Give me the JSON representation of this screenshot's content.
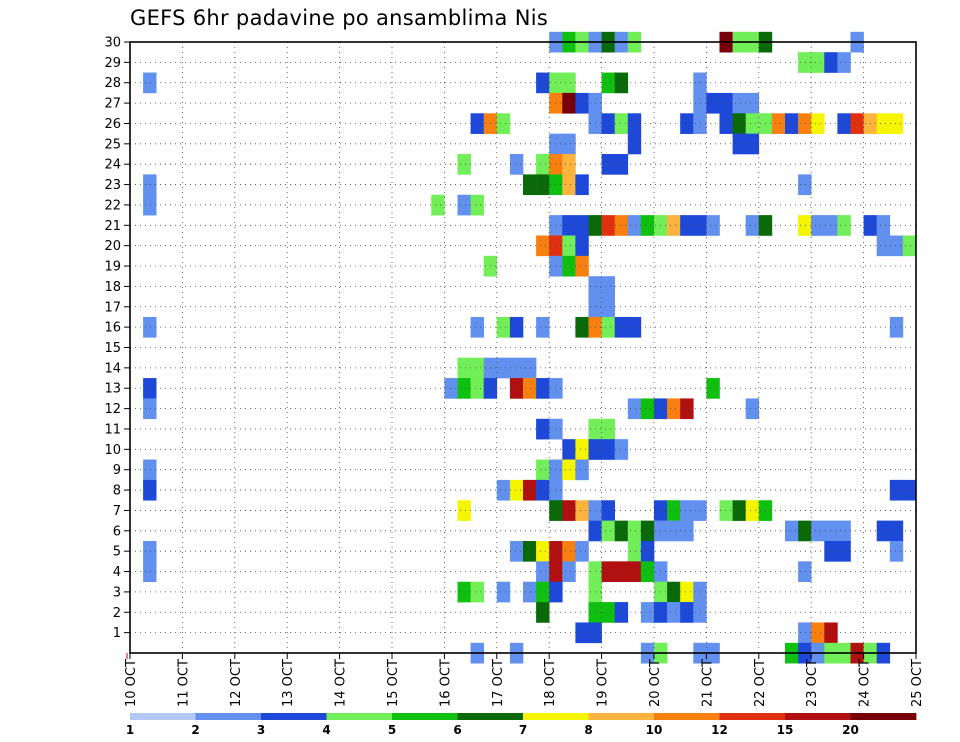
{
  "title": "GEFS 6hr padavine po ansamblima Nis",
  "chart_data": {
    "type": "heatmap",
    "title": "GEFS 6hr padavine po ansamblima Nis",
    "xlabel": "",
    "ylabel": "",
    "x_start_day": 10,
    "x_end_day": 25,
    "x_steps_per_day": 4,
    "x_ticks": [
      "10 OCT",
      "11 OCT",
      "12 OCT",
      "13 OCT",
      "14 OCT",
      "15 OCT",
      "16 OCT",
      "17 OCT",
      "18 OCT",
      "19 OCT",
      "20 OCT",
      "21 OCT",
      "22 OCT",
      "23 OCT",
      "24 OCT",
      "25 OCT"
    ],
    "y_ticks": [
      "1",
      "2",
      "3",
      "4",
      "5",
      "6",
      "7",
      "8",
      "9",
      "10",
      "11",
      "12",
      "13",
      "14",
      "15",
      "16",
      "17",
      "18",
      "19",
      "20",
      "21",
      "22",
      "23",
      "24",
      "25",
      "26",
      "27",
      "28",
      "29",
      "30"
    ],
    "grid": true,
    "legend_position": "bottom",
    "color_scale": [
      {
        "label": "1",
        "color": "#b4c8f5"
      },
      {
        "label": "2",
        "color": "#6290ee"
      },
      {
        "label": "3",
        "color": "#1e48d8"
      },
      {
        "label": "4",
        "color": "#72ee58"
      },
      {
        "label": "5",
        "color": "#10c010"
      },
      {
        "label": "6",
        "color": "#0a6a0a"
      },
      {
        "label": "7",
        "color": "#f5f500"
      },
      {
        "label": "8",
        "color": "#fcb43c"
      },
      {
        "label": "10",
        "color": "#f88010"
      },
      {
        "label": "12",
        "color": "#e03010"
      },
      {
        "label": "15",
        "color": "#b01010"
      },
      {
        "label": "20",
        "color": "#780008"
      }
    ],
    "ensembles": [
      {
        "y": 30,
        "cells": [
          [
            18.0,
            1
          ],
          [
            18.25,
            4
          ],
          [
            18.5,
            3
          ],
          [
            18.75,
            1
          ],
          [
            19.0,
            5
          ],
          [
            19.25,
            1
          ],
          [
            19.5,
            3
          ],
          [
            21.25,
            11
          ],
          [
            21.5,
            3
          ],
          [
            21.75,
            3
          ],
          [
            22.0,
            5
          ],
          [
            23.75,
            1
          ]
        ]
      },
      {
        "y": 29,
        "cells": [
          [
            22.75,
            3
          ],
          [
            23.0,
            3
          ],
          [
            23.25,
            2
          ],
          [
            23.5,
            1
          ]
        ]
      },
      {
        "y": 28,
        "cells": [
          [
            10.25,
            1
          ],
          [
            17.75,
            2
          ],
          [
            18.0,
            3
          ],
          [
            18.25,
            3
          ],
          [
            19.0,
            4
          ],
          [
            19.25,
            5
          ],
          [
            20.75,
            1
          ]
        ]
      },
      {
        "y": 27,
        "cells": [
          [
            18.0,
            8
          ],
          [
            18.25,
            11
          ],
          [
            18.5,
            2
          ],
          [
            18.75,
            1
          ],
          [
            20.75,
            1
          ],
          [
            21.0,
            2
          ],
          [
            21.25,
            2
          ],
          [
            21.5,
            1
          ],
          [
            21.75,
            1
          ]
        ]
      },
      {
        "y": 26,
        "cells": [
          [
            16.5,
            2
          ],
          [
            16.75,
            8
          ],
          [
            17.0,
            3
          ],
          [
            18.75,
            1
          ],
          [
            19.0,
            2
          ],
          [
            19.25,
            3
          ],
          [
            19.5,
            2
          ],
          [
            20.5,
            2
          ],
          [
            20.75,
            1
          ],
          [
            21.25,
            2
          ],
          [
            21.5,
            5
          ],
          [
            21.75,
            3
          ],
          [
            22.0,
            3
          ],
          [
            22.25,
            8
          ],
          [
            22.5,
            2
          ],
          [
            22.75,
            8
          ],
          [
            23.0,
            6
          ],
          [
            23.5,
            2
          ],
          [
            23.75,
            9
          ],
          [
            24.0,
            7
          ],
          [
            24.25,
            6
          ],
          [
            24.5,
            6
          ]
        ]
      },
      {
        "y": 25,
        "cells": [
          [
            18.0,
            1
          ],
          [
            18.25,
            1
          ],
          [
            19.5,
            2
          ],
          [
            21.5,
            2
          ],
          [
            21.75,
            2
          ]
        ]
      },
      {
        "y": 24,
        "cells": [
          [
            16.25,
            3
          ],
          [
            17.25,
            1
          ],
          [
            17.75,
            3
          ],
          [
            18.0,
            8
          ],
          [
            18.25,
            7
          ],
          [
            19.0,
            2
          ],
          [
            19.25,
            2
          ]
        ]
      },
      {
        "y": 23,
        "cells": [
          [
            10.25,
            1
          ],
          [
            17.5,
            5
          ],
          [
            17.75,
            5
          ],
          [
            18.0,
            4
          ],
          [
            18.25,
            7
          ],
          [
            18.5,
            2
          ],
          [
            22.75,
            1
          ]
        ]
      },
      {
        "y": 22,
        "cells": [
          [
            10.25,
            1
          ],
          [
            15.75,
            3
          ],
          [
            16.25,
            1
          ],
          [
            16.5,
            3
          ]
        ]
      },
      {
        "y": 21,
        "cells": [
          [
            18.0,
            1
          ],
          [
            18.25,
            2
          ],
          [
            18.5,
            2
          ],
          [
            18.75,
            5
          ],
          [
            19.0,
            9
          ],
          [
            19.25,
            8
          ],
          [
            19.5,
            1
          ],
          [
            19.75,
            4
          ],
          [
            20.0,
            3
          ],
          [
            20.25,
            7
          ],
          [
            20.5,
            2
          ],
          [
            20.75,
            2
          ],
          [
            21.0,
            1
          ],
          [
            21.75,
            1
          ],
          [
            22.0,
            5
          ],
          [
            22.75,
            6
          ],
          [
            23.0,
            1
          ],
          [
            23.25,
            1
          ],
          [
            23.5,
            3
          ],
          [
            24.0,
            2
          ],
          [
            24.25,
            1
          ]
        ]
      },
      {
        "y": 20,
        "cells": [
          [
            17.75,
            8
          ],
          [
            18.0,
            9
          ],
          [
            18.25,
            3
          ],
          [
            18.5,
            2
          ],
          [
            24.25,
            1
          ],
          [
            24.5,
            1
          ],
          [
            24.75,
            3
          ]
        ]
      },
      {
        "y": 19,
        "cells": [
          [
            16.75,
            3
          ],
          [
            18.0,
            1
          ],
          [
            18.25,
            4
          ],
          [
            18.5,
            8
          ]
        ]
      },
      {
        "y": 18,
        "cells": [
          [
            18.75,
            1
          ],
          [
            19.0,
            1
          ]
        ]
      },
      {
        "y": 17,
        "cells": [
          [
            18.75,
            1
          ],
          [
            19.0,
            1
          ]
        ]
      },
      {
        "y": 16,
        "cells": [
          [
            10.25,
            1
          ],
          [
            16.5,
            1
          ],
          [
            17.0,
            3
          ],
          [
            17.25,
            2
          ],
          [
            17.75,
            1
          ],
          [
            18.5,
            5
          ],
          [
            18.75,
            8
          ],
          [
            19.0,
            3
          ],
          [
            19.25,
            2
          ],
          [
            19.5,
            2
          ],
          [
            24.5,
            1
          ]
        ]
      },
      {
        "y": 14,
        "cells": [
          [
            16.25,
            3
          ],
          [
            16.5,
            3
          ],
          [
            16.75,
            1
          ],
          [
            17.0,
            1
          ],
          [
            17.25,
            1
          ],
          [
            17.5,
            1
          ]
        ]
      },
      {
        "y": 13,
        "cells": [
          [
            10.25,
            2
          ],
          [
            16.0,
            1
          ],
          [
            16.25,
            4
          ],
          [
            16.5,
            3
          ],
          [
            16.75,
            2
          ],
          [
            17.25,
            10
          ],
          [
            17.5,
            8
          ],
          [
            17.75,
            2
          ],
          [
            18.0,
            1
          ],
          [
            21.0,
            4
          ]
        ]
      },
      {
        "y": 12,
        "cells": [
          [
            10.25,
            1
          ],
          [
            19.5,
            1
          ],
          [
            19.75,
            4
          ],
          [
            20.0,
            2
          ],
          [
            20.25,
            8
          ],
          [
            20.5,
            10
          ],
          [
            21.75,
            1
          ]
        ]
      },
      {
        "y": 11,
        "cells": [
          [
            17.75,
            2
          ],
          [
            18.0,
            1
          ],
          [
            18.75,
            3
          ],
          [
            19.0,
            3
          ]
        ]
      },
      {
        "y": 10,
        "cells": [
          [
            18.25,
            2
          ],
          [
            18.5,
            6
          ],
          [
            18.75,
            2
          ],
          [
            19.0,
            2
          ],
          [
            19.25,
            1
          ]
        ]
      },
      {
        "y": 9,
        "cells": [
          [
            10.25,
            1
          ],
          [
            17.75,
            3
          ],
          [
            18.0,
            1
          ],
          [
            18.25,
            6
          ],
          [
            18.5,
            1
          ]
        ]
      },
      {
        "y": 8,
        "cells": [
          [
            10.25,
            2
          ],
          [
            17.0,
            1
          ],
          [
            17.25,
            6
          ],
          [
            17.5,
            10
          ],
          [
            17.75,
            2
          ],
          [
            18.0,
            1
          ],
          [
            24.5,
            2
          ],
          [
            24.75,
            2
          ]
        ]
      },
      {
        "y": 7,
        "cells": [
          [
            16.25,
            6
          ],
          [
            18.0,
            5
          ],
          [
            18.25,
            10
          ],
          [
            18.5,
            7
          ],
          [
            18.75,
            1
          ],
          [
            19.0,
            2
          ],
          [
            20.0,
            2
          ],
          [
            20.25,
            4
          ],
          [
            20.5,
            1
          ],
          [
            20.75,
            1
          ],
          [
            21.25,
            3
          ],
          [
            21.5,
            5
          ],
          [
            21.75,
            6
          ],
          [
            22.0,
            4
          ]
        ]
      },
      {
        "y": 6,
        "cells": [
          [
            18.75,
            2
          ],
          [
            19.0,
            3
          ],
          [
            19.25,
            5
          ],
          [
            19.5,
            3
          ],
          [
            19.75,
            5
          ],
          [
            20.0,
            1
          ],
          [
            20.25,
            1
          ],
          [
            20.5,
            1
          ],
          [
            22.5,
            1
          ],
          [
            22.75,
            5
          ],
          [
            23.0,
            1
          ],
          [
            23.25,
            1
          ],
          [
            23.5,
            1
          ],
          [
            24.25,
            2
          ],
          [
            24.5,
            2
          ]
        ]
      },
      {
        "y": 5,
        "cells": [
          [
            10.25,
            1
          ],
          [
            17.25,
            1
          ],
          [
            17.5,
            5
          ],
          [
            17.75,
            6
          ],
          [
            18.0,
            10
          ],
          [
            18.25,
            8
          ],
          [
            18.5,
            1
          ],
          [
            19.5,
            3
          ],
          [
            19.75,
            2
          ],
          [
            23.25,
            2
          ],
          [
            23.5,
            2
          ],
          [
            24.5,
            1
          ]
        ]
      },
      {
        "y": 4,
        "cells": [
          [
            10.25,
            1
          ],
          [
            17.75,
            1
          ],
          [
            18.0,
            10
          ],
          [
            18.25,
            1
          ],
          [
            18.75,
            3
          ],
          [
            19.0,
            10
          ],
          [
            19.25,
            10
          ],
          [
            19.5,
            10
          ],
          [
            19.75,
            4
          ],
          [
            20.0,
            1
          ],
          [
            22.75,
            1
          ]
        ]
      },
      {
        "y": 3,
        "cells": [
          [
            16.25,
            4
          ],
          [
            16.5,
            3
          ],
          [
            17.0,
            1
          ],
          [
            17.5,
            1
          ],
          [
            17.75,
            4
          ],
          [
            18.0,
            2
          ],
          [
            18.75,
            3
          ],
          [
            20.0,
            3
          ],
          [
            20.25,
            5
          ],
          [
            20.5,
            6
          ],
          [
            20.75,
            1
          ]
        ]
      },
      {
        "y": 2,
        "cells": [
          [
            17.75,
            5
          ],
          [
            18.75,
            4
          ],
          [
            19.0,
            4
          ],
          [
            19.25,
            2
          ],
          [
            19.75,
            1
          ],
          [
            20.0,
            2
          ],
          [
            20.25,
            1
          ],
          [
            20.5,
            2
          ],
          [
            20.75,
            1
          ]
        ]
      },
      {
        "y": 1,
        "cells": [
          [
            18.5,
            2
          ],
          [
            18.75,
            2
          ],
          [
            22.75,
            1
          ],
          [
            23.0,
            8
          ],
          [
            23.25,
            10
          ]
        ]
      },
      {
        "y": 0,
        "cells": [
          [
            16.5,
            1
          ],
          [
            17.25,
            1
          ],
          [
            19.75,
            1
          ],
          [
            20.0,
            3
          ],
          [
            20.75,
            1
          ],
          [
            21.0,
            1
          ],
          [
            22.5,
            4
          ],
          [
            22.75,
            2
          ],
          [
            23.0,
            1
          ],
          [
            23.25,
            3
          ],
          [
            23.5,
            3
          ],
          [
            23.75,
            10
          ],
          [
            24.0,
            3
          ],
          [
            24.25,
            2
          ]
        ]
      }
    ]
  }
}
